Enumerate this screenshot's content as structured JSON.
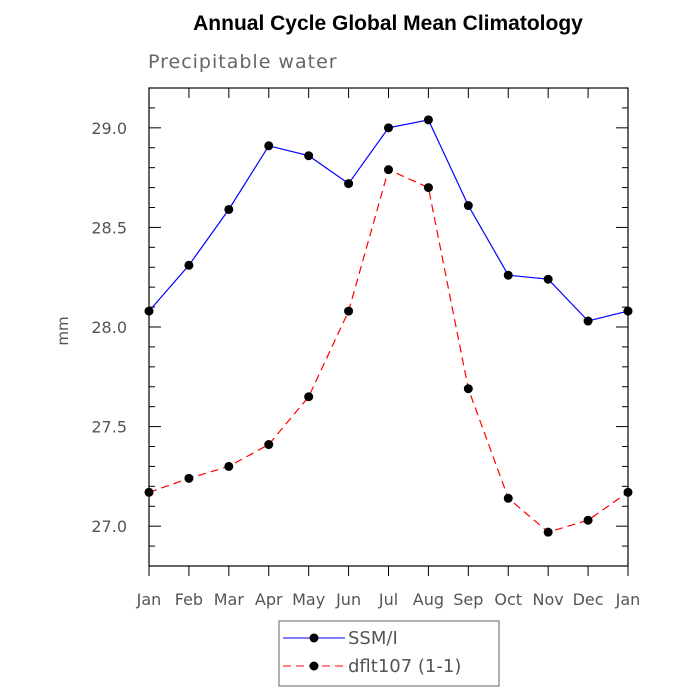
{
  "chart_data": {
    "type": "line",
    "title": "Annual Cycle Global Mean Climatology",
    "subtitle": "Precipitable water",
    "xlabel": "",
    "ylabel": "mm",
    "categories": [
      "Jan",
      "Feb",
      "Mar",
      "Apr",
      "May",
      "Jun",
      "Jul",
      "Aug",
      "Sep",
      "Oct",
      "Nov",
      "Dec",
      "Jan"
    ],
    "ylim": [
      26.8,
      29.2
    ],
    "yticks": [
      "27.0",
      "27.5",
      "28.0",
      "28.5",
      "29.0"
    ],
    "grid": false,
    "legend_position": "bottom",
    "series": [
      {
        "name": "SSM/I",
        "color": "#0000ff",
        "dash": "solid",
        "values": [
          28.08,
          28.31,
          28.59,
          28.91,
          28.86,
          28.72,
          29.0,
          29.04,
          28.61,
          28.26,
          28.24,
          28.03,
          28.08
        ]
      },
      {
        "name": "dflt107 (1-1)",
        "color": "#ff0000",
        "dash": "dashed",
        "values": [
          27.17,
          27.24,
          27.3,
          27.41,
          27.65,
          28.08,
          28.79,
          28.7,
          27.69,
          27.14,
          26.97,
          27.03,
          27.17
        ]
      }
    ]
  }
}
